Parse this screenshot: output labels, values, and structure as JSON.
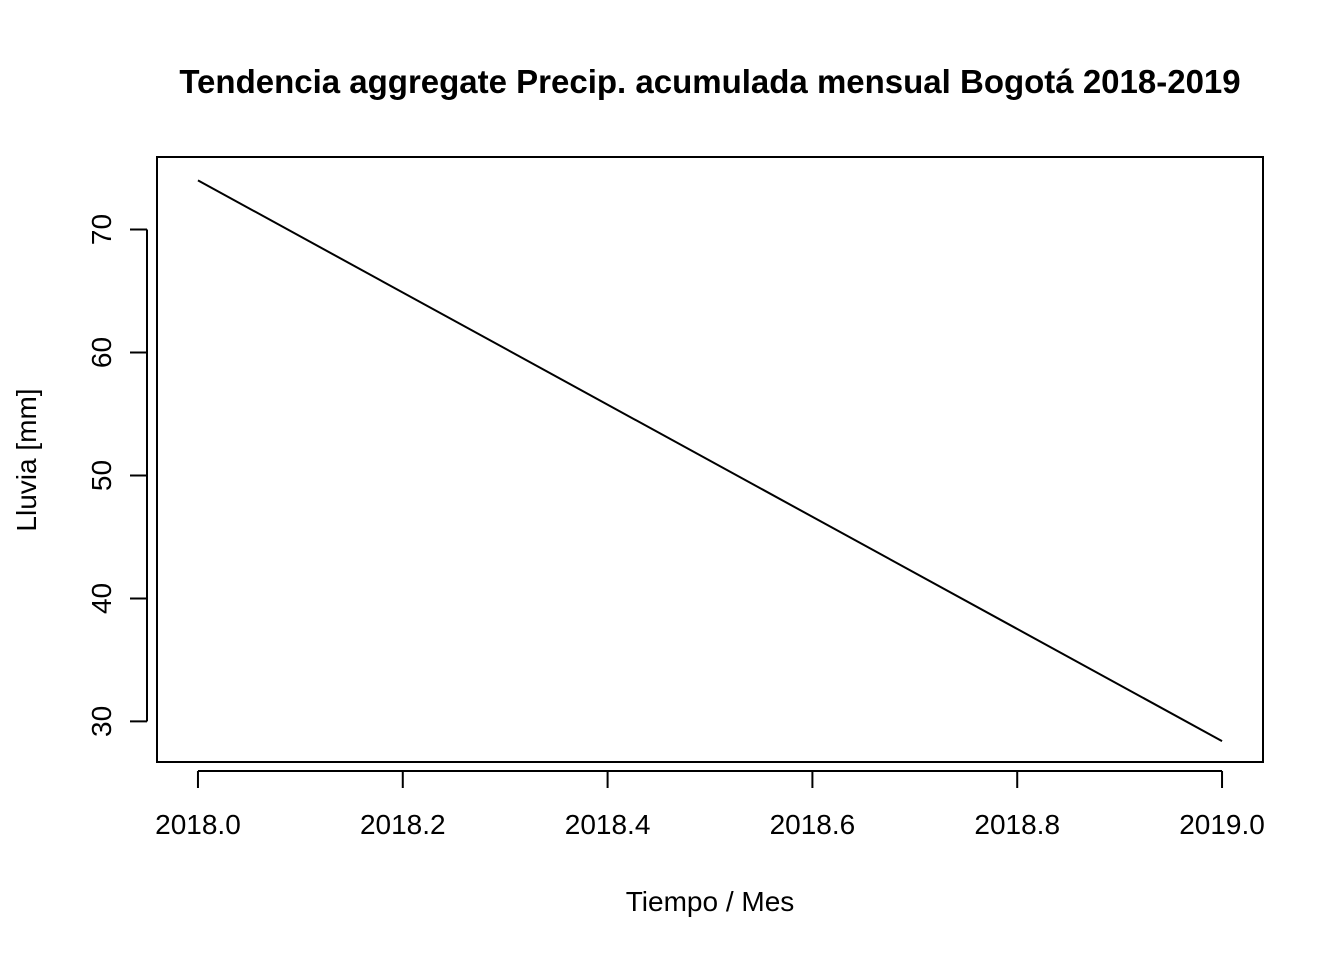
{
  "chart_data": {
    "type": "line",
    "title": "Tendencia aggregate Precip. acumulada mensual Bogotá 2018-2019",
    "xlabel": "Tiempo / Mes",
    "ylabel": "Lluvia [mm]",
    "xlim": [
      2017.96,
      2019.04
    ],
    "ylim": [
      26.7,
      75.9
    ],
    "xticks": [
      2018.0,
      2018.2,
      2018.4,
      2018.6,
      2018.8,
      2019.0
    ],
    "xtick_labels": [
      "2018.0",
      "2018.2",
      "2018.4",
      "2018.6",
      "2018.8",
      "2019.0"
    ],
    "yticks": [
      30,
      40,
      50,
      60,
      70
    ],
    "ytick_labels": [
      "30",
      "40",
      "50",
      "60",
      "70"
    ],
    "grid": false,
    "series": [
      {
        "color": "#000000",
        "x": [
          2018.0,
          2019.0
        ],
        "y": [
          74.0,
          28.4
        ]
      }
    ]
  }
}
